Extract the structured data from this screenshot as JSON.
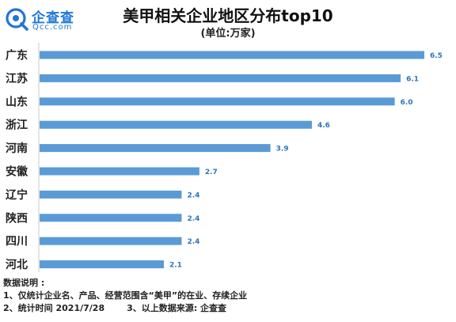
{
  "brand": {
    "name": "企查查",
    "domain": "Qcc.com",
    "accent": "#1f76d6"
  },
  "chart_data": {
    "type": "bar",
    "orientation": "horizontal",
    "title": "美甲相关企业地区分布top10",
    "subtitle": "(单位:万家)",
    "categories": [
      "广东",
      "江苏",
      "山东",
      "浙江",
      "河南",
      "安徽",
      "辽宁",
      "陕西",
      "四川",
      "河北"
    ],
    "values": [
      6.5,
      6.1,
      6.0,
      4.6,
      3.9,
      2.7,
      2.4,
      2.4,
      2.4,
      2.1
    ],
    "value_labels": [
      "6.5",
      "6.1",
      "6.0",
      "4.6",
      "3.9",
      "2.7",
      "2.4",
      "2.4",
      "2.4",
      "2.1"
    ],
    "xlim": [
      0,
      6.5
    ],
    "bar_color": "#5b9bd5",
    "label_color": "#2e75b6",
    "grid": false,
    "legend": false
  },
  "notes": {
    "heading": "数据说明 :",
    "line1": "1、仅统计企业名、产品、经营范围含“美甲”的在业、存续企业",
    "line2a": "2、统计时间 2021/7/28",
    "line2b": "3、以上数据来源: 企查查"
  }
}
